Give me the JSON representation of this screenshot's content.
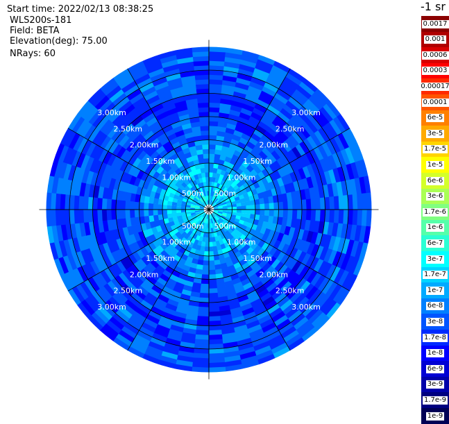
{
  "info": {
    "start_time": "Start time: 2022/02/13 08:38:25",
    "instrument": "WLS200s-181",
    "field": "Field: BETA",
    "elevation": "Elevation(deg): 75.00",
    "nrays": "NRays: 60"
  },
  "colorbar": {
    "unit_label": "-1 sr",
    "levels": [
      {
        "label": "0.0017",
        "color": "#8b0000"
      },
      {
        "label": "0.001",
        "color": "#b00000"
      },
      {
        "label": "0.0006",
        "color": "#d80000"
      },
      {
        "label": "0.0003",
        "color": "#ff0000"
      },
      {
        "label": "0.00017",
        "color": "#ff2a00"
      },
      {
        "label": "0.0001",
        "color": "#ff5500"
      },
      {
        "label": "6e-5",
        "color": "#ff8000"
      },
      {
        "label": "3e-5",
        "color": "#ffaa00"
      },
      {
        "label": "1.7e-5",
        "color": "#ffd400"
      },
      {
        "label": "1e-5",
        "color": "#ffff00"
      },
      {
        "label": "6e-6",
        "color": "#d4ff2a"
      },
      {
        "label": "3e-6",
        "color": "#aaff55"
      },
      {
        "label": "1.7e-6",
        "color": "#80ff80"
      },
      {
        "label": "1e-6",
        "color": "#55ffaa"
      },
      {
        "label": "6e-7",
        "color": "#2affd4"
      },
      {
        "label": "3e-7",
        "color": "#00ffff"
      },
      {
        "label": "1.7e-7",
        "color": "#00d4ff"
      },
      {
        "label": "1e-7",
        "color": "#00aaff"
      },
      {
        "label": "6e-8",
        "color": "#0080ff"
      },
      {
        "label": "3e-8",
        "color": "#0055ff"
      },
      {
        "label": "1.7e-8",
        "color": "#002aff"
      },
      {
        "label": "1e-8",
        "color": "#0000ff"
      },
      {
        "label": "6e-9",
        "color": "#0000d4"
      },
      {
        "label": "3e-9",
        "color": "#0000aa"
      },
      {
        "label": "1.7e-9",
        "color": "#000080"
      },
      {
        "label": "1e-9",
        "color": "#000055"
      }
    ]
  },
  "chart_data": {
    "type": "heatmap",
    "projection": "polar-ppi",
    "field": "BETA",
    "nrays": 60,
    "range_rings": [
      {
        "range_km": 0.5,
        "label": "500m"
      },
      {
        "range_km": 1.0,
        "label": "1.00km"
      },
      {
        "range_km": 1.5,
        "label": "1.50km"
      },
      {
        "range_km": 2.0,
        "label": "2.00km"
      },
      {
        "range_km": 2.5,
        "label": "2.50km"
      },
      {
        "range_km": 3.0,
        "label": "3.00km"
      }
    ],
    "max_range_km": 3.5,
    "spokes_deg": [
      0,
      30,
      60,
      90,
      120,
      150,
      180,
      210,
      240,
      270,
      300,
      330
    ],
    "range_bins": [
      {
        "start_km": 0.0,
        "end_km": 0.1,
        "value": null
      },
      {
        "start_km": 0.1,
        "end_km": 0.5,
        "value": 1.7e-07
      },
      {
        "start_km": 0.5,
        "end_km": 1.0,
        "value": 1.2e-07
      },
      {
        "start_km": 1.0,
        "end_km": 1.5,
        "value": 6e-08
      },
      {
        "start_km": 1.5,
        "end_km": 2.0,
        "value": 3e-08
      },
      {
        "start_km": 2.0,
        "end_km": 2.5,
        "value": 2e-08
      },
      {
        "start_km": 2.5,
        "end_km": 3.0,
        "value": 3e-08
      },
      {
        "start_km": 3.0,
        "end_km": 3.5,
        "value": 3e-08
      }
    ]
  }
}
